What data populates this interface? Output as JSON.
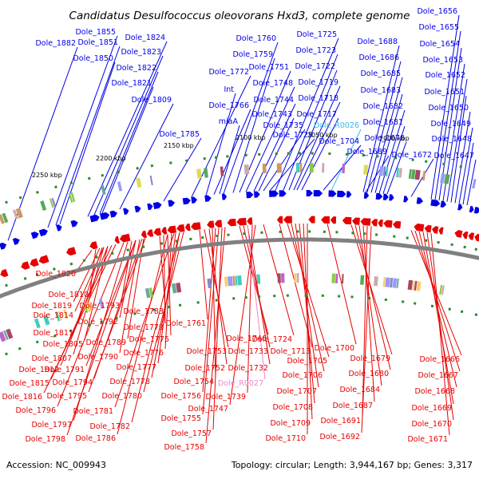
{
  "title": "Candidatus Desulfococcus oleovorans Hxd3, complete genome",
  "footer": {
    "accession": "Accession: NC_009943",
    "summary": "Topology: circular; Length: 3,944,167 bp; Genes: 3,317"
  },
  "colors": {
    "forward": "#0000e6",
    "reverse": "#e60000",
    "rna": "#33bbee",
    "rna_reverse": "#ee88cc",
    "backbone": "#808080",
    "tick": "#2a8a2a"
  },
  "ticks": [
    "2250 kbp",
    "2200 kbp",
    "2150 kbp",
    "2100 kbp",
    "2050 kbp",
    "2000 kbp"
  ],
  "forward_labels": [
    "Dole_1882",
    "Dole_1855",
    "Dole_1851",
    "Dole_1850",
    "Dole_1824",
    "Dole_1823",
    "Dole_1822",
    "Dole_1821",
    "Dole_1809",
    "Dole_1785",
    "Dole_1772",
    "Int",
    "Dole_1766",
    "miaA",
    "Dole_1760",
    "Dole_1759",
    "Dole_1751",
    "Dole_1748",
    "Dole_1744",
    "Dole_1743",
    "Dole_1735",
    "Dole_1729",
    "Dole_1725",
    "Dole_1723",
    "Dole_1722",
    "Dole_1719",
    "Dole_1718",
    "Dole_1717",
    "Dole_R0026",
    "Dole_1704",
    "Dole_1688",
    "Dole_1686",
    "Dole_1685",
    "Dole_1683",
    "Dole_1682",
    "Dole_1681",
    "Dole_1678",
    "Dole_1689",
    "Dole_1672",
    "Dole_1656",
    "Dole_1655",
    "Dole_1654",
    "Dole_1653",
    "Dole_1652",
    "Dole_1651",
    "Dole_1650",
    "Dole_1649",
    "Dole_1648",
    "Dole_1647"
  ],
  "reverse_labels": [
    "Dole_1820",
    "Dole_1810",
    "Dole_1819",
    "Dole_1814",
    "Dole_1811",
    "Dole_1805",
    "Dole_1807",
    "Dole_1812",
    "Dole_1815",
    "Dole_1816",
    "Dole_1796",
    "Dole_1797",
    "Dole_1798",
    "Dole_1793",
    "Dole_1792",
    "Dole_1789",
    "Dole_1790",
    "Dole_1791",
    "Dole_1794",
    "Dole_1795",
    "Dole_1783",
    "Dole_1779",
    "Dole_1775",
    "Dole_1776",
    "Dole_1777",
    "Dole_1778",
    "Dole_1780",
    "Dole_1781",
    "Dole_1782",
    "Dole_1786",
    "Dole_1761",
    "Dole_1753",
    "Dole_1752",
    "Dole_1754",
    "Dole_1756",
    "Dole_1755",
    "Dole_1757",
    "Dole_1758",
    "Dole_1746",
    "Dole_1733",
    "Dole_1732",
    "Dole_R0027",
    "Dole_1739",
    "Dole_1747",
    "Dole_1724",
    "Dole_1713",
    "Dole_1705",
    "Dole_1706",
    "Dole_1707",
    "Dole_1708",
    "Dole_1709",
    "Dole_1710",
    "Dole_1700",
    "Dole_1679",
    "Dole_1680",
    "Dole_1684",
    "Dole_1687",
    "Dole_1691",
    "Dole_1692",
    "Dole_1666",
    "Dole_1667",
    "Dole_1668",
    "Dole_1669",
    "Dole_1670",
    "Dole_1671"
  ]
}
